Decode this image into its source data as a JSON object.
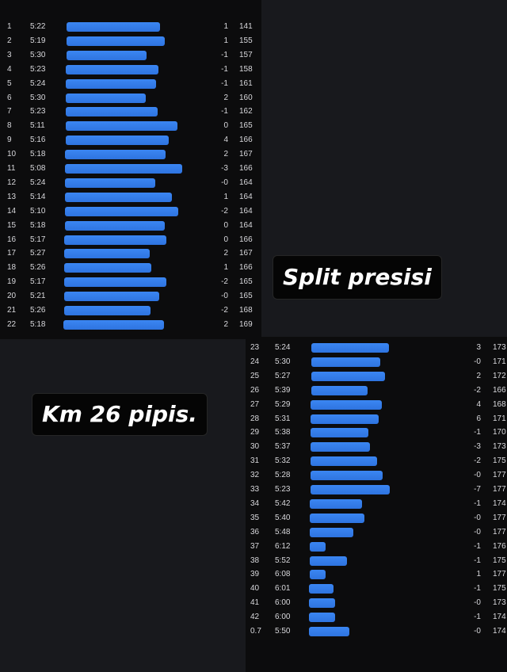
{
  "captions": {
    "split": "Split presisi",
    "km": "Km 26 pipis."
  },
  "splits_first": [
    {
      "km": "1",
      "pace": "5:22",
      "elev": "1",
      "hr": "141",
      "pace_sec": 322
    },
    {
      "km": "2",
      "pace": "5:19",
      "elev": "1",
      "hr": "155",
      "pace_sec": 319
    },
    {
      "km": "3",
      "pace": "5:30",
      "elev": "-1",
      "hr": "157",
      "pace_sec": 330
    },
    {
      "km": "4",
      "pace": "5:23",
      "elev": "-1",
      "hr": "158",
      "pace_sec": 323
    },
    {
      "km": "5",
      "pace": "5:24",
      "elev": "-1",
      "hr": "161",
      "pace_sec": 324
    },
    {
      "km": "6",
      "pace": "5:30",
      "elev": "2",
      "hr": "160",
      "pace_sec": 330
    },
    {
      "km": "7",
      "pace": "5:23",
      "elev": "-1",
      "hr": "162",
      "pace_sec": 323
    },
    {
      "km": "8",
      "pace": "5:11",
      "elev": "0",
      "hr": "165",
      "pace_sec": 311
    },
    {
      "km": "9",
      "pace": "5:16",
      "elev": "4",
      "hr": "166",
      "pace_sec": 316
    },
    {
      "km": "10",
      "pace": "5:18",
      "elev": "2",
      "hr": "167",
      "pace_sec": 318
    },
    {
      "km": "11",
      "pace": "5:08",
      "elev": "-3",
      "hr": "166",
      "pace_sec": 308
    },
    {
      "km": "12",
      "pace": "5:24",
      "elev": "-0",
      "hr": "164",
      "pace_sec": 324
    },
    {
      "km": "13",
      "pace": "5:14",
      "elev": "1",
      "hr": "164",
      "pace_sec": 314
    },
    {
      "km": "14",
      "pace": "5:10",
      "elev": "-2",
      "hr": "164",
      "pace_sec": 310
    },
    {
      "km": "15",
      "pace": "5:18",
      "elev": "0",
      "hr": "164",
      "pace_sec": 318
    },
    {
      "km": "16",
      "pace": "5:17",
      "elev": "0",
      "hr": "166",
      "pace_sec": 317
    },
    {
      "km": "17",
      "pace": "5:27",
      "elev": "2",
      "hr": "167",
      "pace_sec": 327
    },
    {
      "km": "18",
      "pace": "5:26",
      "elev": "1",
      "hr": "166",
      "pace_sec": 326
    },
    {
      "km": "19",
      "pace": "5:17",
      "elev": "-2",
      "hr": "165",
      "pace_sec": 317
    },
    {
      "km": "20",
      "pace": "5:21",
      "elev": "-0",
      "hr": "165",
      "pace_sec": 321
    },
    {
      "km": "21",
      "pace": "5:26",
      "elev": "-2",
      "hr": "168",
      "pace_sec": 326
    },
    {
      "km": "22",
      "pace": "5:18",
      "elev": "2",
      "hr": "169",
      "pace_sec": 318
    }
  ],
  "splits_second": [
    {
      "km": "23",
      "pace": "5:24",
      "elev": "3",
      "hr": "173",
      "pace_sec": 324
    },
    {
      "km": "24",
      "pace": "5:30",
      "elev": "-0",
      "hr": "171",
      "pace_sec": 330
    },
    {
      "km": "25",
      "pace": "5:27",
      "elev": "2",
      "hr": "172",
      "pace_sec": 327
    },
    {
      "km": "26",
      "pace": "5:39",
      "elev": "-2",
      "hr": "166",
      "pace_sec": 339
    },
    {
      "km": "27",
      "pace": "5:29",
      "elev": "4",
      "hr": "168",
      "pace_sec": 329
    },
    {
      "km": "28",
      "pace": "5:31",
      "elev": "6",
      "hr": "171",
      "pace_sec": 331
    },
    {
      "km": "29",
      "pace": "5:38",
      "elev": "-1",
      "hr": "170",
      "pace_sec": 338
    },
    {
      "km": "30",
      "pace": "5:37",
      "elev": "-3",
      "hr": "173",
      "pace_sec": 337
    },
    {
      "km": "31",
      "pace": "5:32",
      "elev": "-2",
      "hr": "175",
      "pace_sec": 332
    },
    {
      "km": "32",
      "pace": "5:28",
      "elev": "-0",
      "hr": "177",
      "pace_sec": 328
    },
    {
      "km": "33",
      "pace": "5:23",
      "elev": "-7",
      "hr": "177",
      "pace_sec": 323
    },
    {
      "km": "34",
      "pace": "5:42",
      "elev": "-1",
      "hr": "174",
      "pace_sec": 342
    },
    {
      "km": "35",
      "pace": "5:40",
      "elev": "-0",
      "hr": "177",
      "pace_sec": 340
    },
    {
      "km": "36",
      "pace": "5:48",
      "elev": "-0",
      "hr": "177",
      "pace_sec": 348
    },
    {
      "km": "37",
      "pace": "6:12",
      "elev": "-1",
      "hr": "176",
      "pace_sec": 372
    },
    {
      "km": "38",
      "pace": "5:52",
      "elev": "-1",
      "hr": "175",
      "pace_sec": 352
    },
    {
      "km": "39",
      "pace": "6:08",
      "elev": "1",
      "hr": "177",
      "pace_sec": 368
    },
    {
      "km": "40",
      "pace": "6:01",
      "elev": "-1",
      "hr": "175",
      "pace_sec": 361
    },
    {
      "km": "41",
      "pace": "6:00",
      "elev": "-0",
      "hr": "173",
      "pace_sec": 360
    },
    {
      "km": "42",
      "pace": "6:00",
      "elev": "-1",
      "hr": "174",
      "pace_sec": 360
    },
    {
      "km": "0.7",
      "pace": "5:50",
      "elev": "-0",
      "hr": "174",
      "pace_sec": 350
    }
  ],
  "colors": {
    "bar": "#3b86f2",
    "panel": "#0c0c0d",
    "background": "#18191d",
    "text": "#d8d8dc"
  }
}
